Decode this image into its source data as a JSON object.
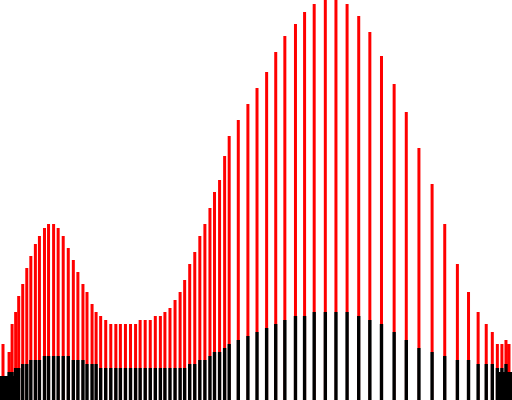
{
  "chart_data": {
    "type": "bar",
    "title": "",
    "xlabel": "",
    "ylabel": "",
    "grid": false,
    "legend": "none",
    "ylim": [
      0,
      1
    ],
    "x": [
      0.0,
      0.012,
      0.018,
      0.025,
      0.031,
      0.039,
      0.047,
      0.055,
      0.064,
      0.072,
      0.082,
      0.09,
      0.1,
      0.109,
      0.119,
      0.129,
      0.139,
      0.148,
      0.158,
      0.166,
      0.176,
      0.184,
      0.193,
      0.203,
      0.213,
      0.223,
      0.232,
      0.242,
      0.252,
      0.262,
      0.271,
      0.281,
      0.291,
      0.301,
      0.311,
      0.32,
      0.33,
      0.34,
      0.35,
      0.359,
      0.369,
      0.379,
      0.389,
      0.399,
      0.409,
      0.418,
      0.428,
      0.438,
      0.447,
      0.465,
      0.484,
      0.502,
      0.521,
      0.539,
      0.557,
      0.578,
      0.596,
      0.615,
      0.637,
      0.658,
      0.68,
      0.703,
      0.725,
      0.748,
      0.773,
      0.797,
      0.822,
      0.848,
      0.873,
      0.898,
      0.92,
      0.939,
      0.955,
      0.967,
      0.977,
      0.986,
      0.994,
      1.0
    ],
    "series": [
      {
        "color": "#ff0000",
        "values": [
          0.14,
          0.12,
          0.19,
          0.22,
          0.26,
          0.29,
          0.33,
          0.36,
          0.39,
          0.41,
          0.43,
          0.44,
          0.44,
          0.43,
          0.41,
          0.38,
          0.35,
          0.32,
          0.29,
          0.27,
          0.24,
          0.22,
          0.21,
          0.2,
          0.19,
          0.19,
          0.19,
          0.19,
          0.19,
          0.19,
          0.2,
          0.2,
          0.2,
          0.21,
          0.21,
          0.22,
          0.23,
          0.25,
          0.27,
          0.3,
          0.34,
          0.37,
          0.41,
          0.44,
          0.48,
          0.52,
          0.55,
          0.61,
          0.66,
          0.7,
          0.74,
          0.78,
          0.82,
          0.87,
          0.91,
          0.94,
          0.97,
          0.99,
          1.0,
          1.0,
          0.99,
          0.96,
          0.92,
          0.86,
          0.79,
          0.72,
          0.63,
          0.54,
          0.44,
          0.34,
          0.27,
          0.22,
          0.19,
          0.17,
          0.14,
          0.14,
          0.15,
          0.14
        ]
      },
      {
        "color": "#000000",
        "values": [
          0.06,
          0.07,
          0.07,
          0.08,
          0.08,
          0.09,
          0.09,
          0.1,
          0.1,
          0.1,
          0.11,
          0.11,
          0.11,
          0.11,
          0.11,
          0.11,
          0.1,
          0.1,
          0.1,
          0.09,
          0.09,
          0.09,
          0.08,
          0.08,
          0.08,
          0.08,
          0.08,
          0.08,
          0.08,
          0.08,
          0.08,
          0.08,
          0.08,
          0.08,
          0.08,
          0.08,
          0.08,
          0.08,
          0.08,
          0.08,
          0.09,
          0.09,
          0.1,
          0.1,
          0.11,
          0.12,
          0.12,
          0.13,
          0.14,
          0.15,
          0.16,
          0.17,
          0.18,
          0.19,
          0.2,
          0.21,
          0.21,
          0.22,
          0.22,
          0.22,
          0.22,
          0.21,
          0.2,
          0.19,
          0.17,
          0.15,
          0.13,
          0.12,
          0.11,
          0.1,
          0.1,
          0.09,
          0.09,
          0.09,
          0.08,
          0.08,
          0.09,
          0.07
        ]
      }
    ]
  }
}
